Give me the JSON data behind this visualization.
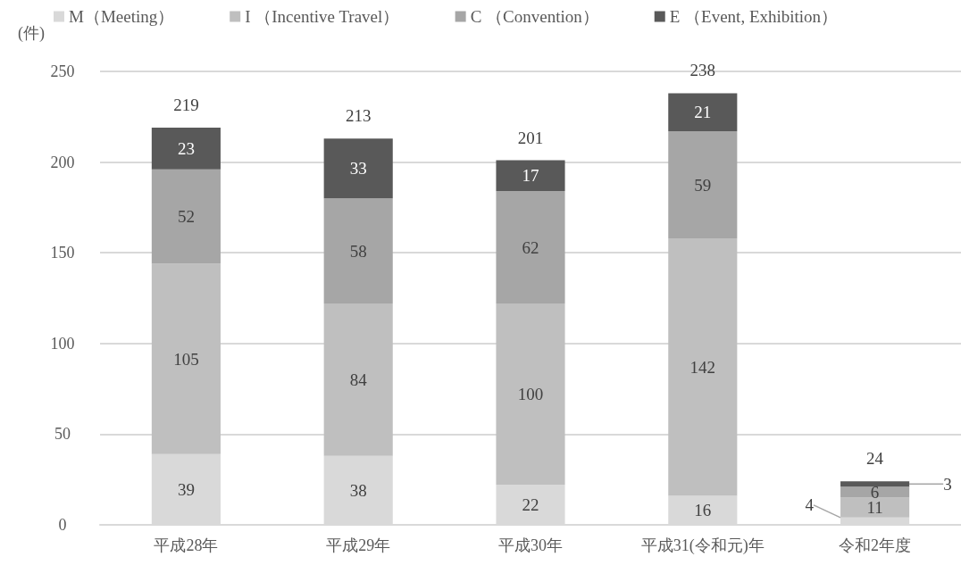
{
  "chart_data": {
    "type": "bar",
    "stacked": true,
    "ylabel": "(件)",
    "categories": [
      "平成28年",
      "平成29年",
      "平成30年",
      "平成31(令和元)年",
      "令和2年度"
    ],
    "series": [
      {
        "name": "M（Meeting）",
        "color": "#d9d9d9",
        "values": [
          39,
          38,
          22,
          16,
          4
        ]
      },
      {
        "name": "I （Incentive Travel）",
        "color": "#bfbfbf",
        "values": [
          105,
          84,
          100,
          142,
          11
        ]
      },
      {
        "name": "C （Convention）",
        "color": "#a6a6a6",
        "values": [
          52,
          58,
          62,
          59,
          6
        ]
      },
      {
        "name": "E （Event, Exhibition）",
        "color": "#595959",
        "values": [
          23,
          33,
          17,
          21,
          3
        ]
      }
    ],
    "totals": [
      "219",
      "213",
      "201",
      "238",
      "24"
    ],
    "ylim": [
      0,
      250
    ],
    "yticks": [
      0,
      50,
      100,
      150,
      200,
      250
    ],
    "data_labels": true,
    "grid": "y",
    "legend": "top"
  }
}
